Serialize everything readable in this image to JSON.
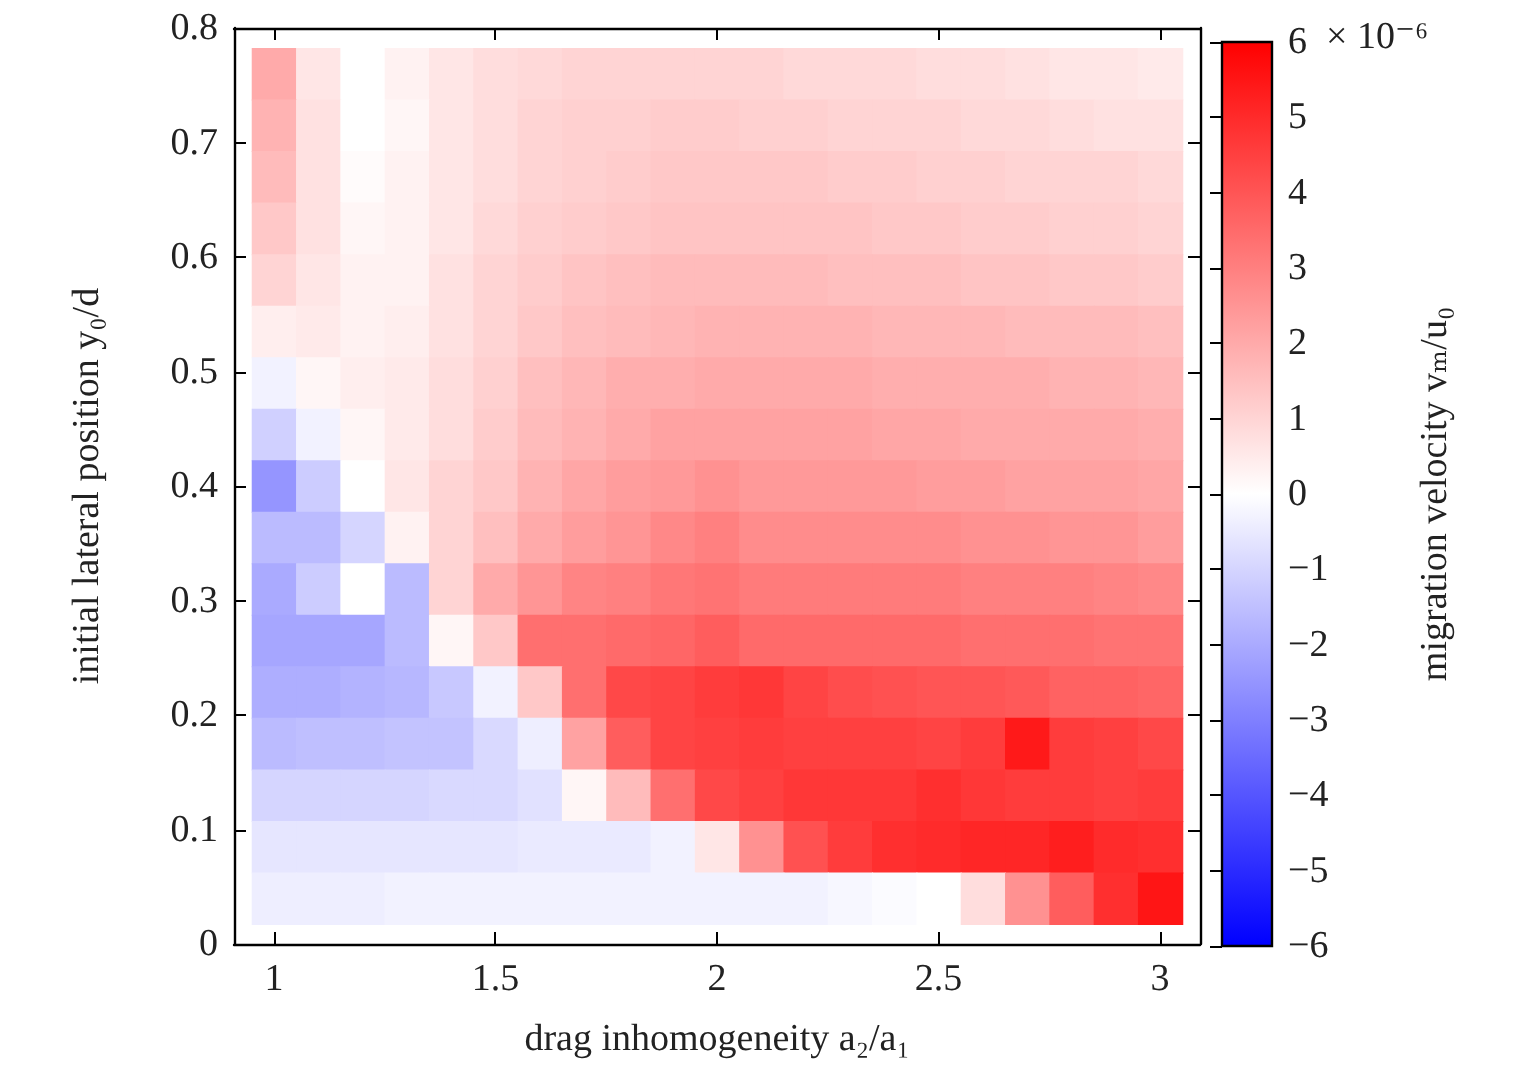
{
  "chart_data": {
    "type": "heatmap",
    "xlabel": "drag inhomogeneity a₂/a₁",
    "ylabel": "initial lateral position y₀/d",
    "clabel": "migration velocity vₘ/u₀",
    "x": [
      1.0,
      1.1,
      1.2,
      1.3,
      1.4,
      1.5,
      1.6,
      1.7,
      1.8,
      1.9,
      2.0,
      2.1,
      2.2,
      2.3,
      2.4,
      2.5,
      2.6,
      2.7,
      2.8,
      2.9,
      3.0
    ],
    "y": [
      0.76,
      0.715,
      0.67,
      0.625,
      0.58,
      0.535,
      0.49,
      0.445,
      0.4,
      0.355,
      0.31,
      0.265,
      0.22,
      0.175,
      0.13,
      0.085,
      0.04
    ],
    "cells": [
      [
        2.0,
        0.6,
        0,
        0.3,
        0.6,
        0.8,
        0.9,
        1.0,
        1.0,
        1.0,
        1.0,
        1.0,
        0.9,
        0.9,
        0.9,
        0.8,
        0.8,
        0.7,
        0.6,
        0.6,
        0.5
      ],
      [
        1.8,
        0.7,
        0,
        0.2,
        0.6,
        0.8,
        1.0,
        1.1,
        1.1,
        1.2,
        1.2,
        1.1,
        1.1,
        1.0,
        1.0,
        1.0,
        0.9,
        0.9,
        0.8,
        0.7,
        0.7
      ],
      [
        1.6,
        0.7,
        0.1,
        0.3,
        0.6,
        0.8,
        1.0,
        1.1,
        1.2,
        1.3,
        1.3,
        1.3,
        1.3,
        1.2,
        1.2,
        1.1,
        1.1,
        1.0,
        1.0,
        1.0,
        0.9
      ],
      [
        1.3,
        0.7,
        0.2,
        0.3,
        0.6,
        0.9,
        1.1,
        1.2,
        1.3,
        1.4,
        1.4,
        1.4,
        1.4,
        1.4,
        1.3,
        1.3,
        1.2,
        1.2,
        1.1,
        1.1,
        1.0
      ],
      [
        1.0,
        0.6,
        0.3,
        0.3,
        0.7,
        1.0,
        1.2,
        1.4,
        1.5,
        1.6,
        1.6,
        1.6,
        1.6,
        1.5,
        1.5,
        1.5,
        1.4,
        1.4,
        1.3,
        1.3,
        1.2
      ],
      [
        0.4,
        0.5,
        0.3,
        0.4,
        0.7,
        1.0,
        1.3,
        1.5,
        1.6,
        1.7,
        1.8,
        1.8,
        1.8,
        1.8,
        1.7,
        1.7,
        1.7,
        1.6,
        1.6,
        1.6,
        1.5
      ],
      [
        -0.3,
        0.2,
        0.4,
        0.5,
        0.8,
        1.1,
        1.5,
        1.7,
        1.9,
        1.9,
        2.0,
        2.0,
        2.0,
        2.0,
        1.9,
        1.9,
        1.9,
        1.9,
        1.8,
        1.8,
        1.7
      ],
      [
        -1.1,
        -0.3,
        0.2,
        0.5,
        0.8,
        1.2,
        1.6,
        1.8,
        2.0,
        2.2,
        2.2,
        2.2,
        2.2,
        2.2,
        2.1,
        2.1,
        2.0,
        2.0,
        2.0,
        2.0,
        1.9
      ],
      [
        -2.5,
        -1.2,
        0,
        0.6,
        1.0,
        1.3,
        1.8,
        2.1,
        2.3,
        2.4,
        2.6,
        2.4,
        2.4,
        2.4,
        2.4,
        2.3,
        2.3,
        2.2,
        2.2,
        2.2,
        2.1
      ],
      [
        -1.6,
        -1.6,
        -1.0,
        0.3,
        1.0,
        1.5,
        2.0,
        2.3,
        2.5,
        2.8,
        3.0,
        2.7,
        2.7,
        2.7,
        2.7,
        2.7,
        2.6,
        2.6,
        2.5,
        2.5,
        2.3
      ],
      [
        -2.0,
        -1.2,
        0,
        -1.6,
        1.0,
        2.0,
        2.5,
        2.9,
        3.0,
        3.2,
        3.3,
        3.1,
        3.1,
        3.1,
        3.1,
        3.1,
        3.0,
        3.0,
        3.0,
        2.9,
        2.8
      ],
      [
        -2.1,
        -2.1,
        -2.1,
        -1.6,
        0.2,
        1.3,
        3.4,
        3.4,
        3.5,
        3.6,
        3.8,
        3.5,
        3.5,
        3.5,
        3.5,
        3.5,
        3.4,
        3.4,
        3.4,
        3.3,
        3.3
      ],
      [
        -1.9,
        -1.9,
        -1.8,
        -1.7,
        -1.3,
        -0.3,
        1.3,
        3.4,
        4.3,
        4.4,
        4.6,
        4.7,
        4.4,
        4.2,
        4.1,
        4.0,
        4.0,
        3.9,
        3.7,
        3.7,
        3.6
      ],
      [
        -1.6,
        -1.5,
        -1.5,
        -1.4,
        -1.4,
        -0.9,
        -0.4,
        2.2,
        3.8,
        4.4,
        4.5,
        4.6,
        4.5,
        4.5,
        4.5,
        4.4,
        4.6,
        5.4,
        4.6,
        4.5,
        4.3
      ],
      [
        -1.0,
        -1.0,
        -1.0,
        -1.0,
        -0.9,
        -0.9,
        -0.7,
        0.2,
        1.6,
        3.4,
        4.3,
        4.5,
        4.7,
        4.7,
        4.7,
        4.9,
        4.7,
        4.6,
        4.6,
        4.5,
        4.6
      ],
      [
        -0.6,
        -0.6,
        -0.6,
        -0.6,
        -0.6,
        -0.6,
        -0.5,
        -0.5,
        -0.5,
        -0.3,
        0.6,
        2.6,
        4.1,
        4.6,
        4.9,
        5.0,
        5.1,
        5.1,
        5.3,
        5.0,
        4.9
      ],
      [
        -0.4,
        -0.4,
        -0.4,
        -0.3,
        -0.3,
        -0.3,
        -0.3,
        -0.3,
        -0.3,
        -0.3,
        -0.3,
        -0.3,
        -0.3,
        -0.2,
        -0.1,
        0,
        0.8,
        2.6,
        3.8,
        4.9,
        5.5
      ]
    ],
    "xlim": [
      0.91,
      3.09
    ],
    "xticks": [
      1,
      1.5,
      2,
      2.5,
      3
    ],
    "ylim": [
      0,
      0.8
    ],
    "yticks": [
      0,
      0.1,
      0.2,
      0.3,
      0.4,
      0.5,
      0.6,
      0.7,
      0.8
    ],
    "clim": [
      -6,
      6
    ],
    "cticks": [
      {
        "value": -6,
        "label": "−6"
      },
      {
        "value": -5,
        "label": "−5"
      },
      {
        "value": -4,
        "label": "−4"
      },
      {
        "value": -3,
        "label": "−3"
      },
      {
        "value": -2,
        "label": "−2"
      },
      {
        "value": -1,
        "label": "−1"
      },
      0,
      1,
      2,
      3,
      4,
      5,
      6
    ],
    "annotations": [
      "× 10⁻⁶"
    ],
    "grid": false
  }
}
